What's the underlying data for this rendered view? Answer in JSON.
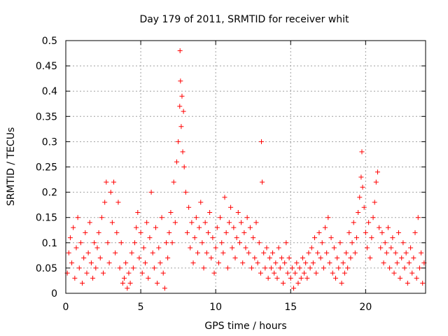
{
  "chart_data": {
    "type": "scatter",
    "title": "Day 179 of 2011, SRMTID for receiver whit",
    "xlabel": "GPS time / hours",
    "ylabel": "SRMTID / TECUs",
    "xlim": [
      0,
      24
    ],
    "ylim": [
      0,
      0.5
    ],
    "xticks": [
      0,
      5,
      10,
      15,
      20
    ],
    "xtick_labels": [
      "0",
      "5",
      "10",
      "15",
      "20"
    ],
    "yticks": [
      0,
      0.05,
      0.1,
      0.15,
      0.2,
      0.25,
      0.3,
      0.35,
      0.4,
      0.45,
      0.5
    ],
    "ytick_labels": [
      "0",
      "0.05",
      "0.1",
      "0.15",
      "0.2",
      "0.25",
      "0.3",
      "0.35",
      "0.4",
      "0.45",
      "0.5"
    ],
    "grid": true,
    "marker": "+",
    "color": "#ff0000",
    "series": [
      {
        "name": "SRMTID",
        "points": [
          [
            0.1,
            0.04
          ],
          [
            0.2,
            0.08
          ],
          [
            0.3,
            0.11
          ],
          [
            0.4,
            0.06
          ],
          [
            0.5,
            0.13
          ],
          [
            0.6,
            0.03
          ],
          [
            0.7,
            0.09
          ],
          [
            0.8,
            0.15
          ],
          [
            0.9,
            0.05
          ],
          [
            1.0,
            0.1
          ],
          [
            1.1,
            0.02
          ],
          [
            1.2,
            0.07
          ],
          [
            1.3,
            0.12
          ],
          [
            1.4,
            0.04
          ],
          [
            1.5,
            0.08
          ],
          [
            1.6,
            0.14
          ],
          [
            1.7,
            0.06
          ],
          [
            1.8,
            0.03
          ],
          [
            1.9,
            0.1
          ],
          [
            2.0,
            0.05
          ],
          [
            2.1,
            0.09
          ],
          [
            2.2,
            0.12
          ],
          [
            2.3,
            0.07
          ],
          [
            2.4,
            0.15
          ],
          [
            2.5,
            0.04
          ],
          [
            2.6,
            0.18
          ],
          [
            2.7,
            0.22
          ],
          [
            2.8,
            0.1
          ],
          [
            2.9,
            0.06
          ],
          [
            3.0,
            0.2
          ],
          [
            3.1,
            0.14
          ],
          [
            3.2,
            0.22
          ],
          [
            3.3,
            0.08
          ],
          [
            3.4,
            0.12
          ],
          [
            3.5,
            0.18
          ],
          [
            3.6,
            0.05
          ],
          [
            3.7,
            0.1
          ],
          [
            3.8,
            0.02
          ],
          [
            3.9,
            0.03
          ],
          [
            4.0,
            0.06
          ],
          [
            4.1,
            0.01
          ],
          [
            4.2,
            0.04
          ],
          [
            4.3,
            0.02
          ],
          [
            4.4,
            0.08
          ],
          [
            4.5,
            0.05
          ],
          [
            4.6,
            0.1
          ],
          [
            4.7,
            0.13
          ],
          [
            4.8,
            0.16
          ],
          [
            4.9,
            0.07
          ],
          [
            5.0,
            0.12
          ],
          [
            5.1,
            0.04
          ],
          [
            5.2,
            0.09
          ],
          [
            5.3,
            0.06
          ],
          [
            5.4,
            0.14
          ],
          [
            5.5,
            0.03
          ],
          [
            5.6,
            0.11
          ],
          [
            5.7,
            0.2
          ],
          [
            5.8,
            0.08
          ],
          [
            5.9,
            0.05
          ],
          [
            6.0,
            0.13
          ],
          [
            6.1,
            0.02
          ],
          [
            6.2,
            0.09
          ],
          [
            6.3,
            0.06
          ],
          [
            6.4,
            0.15
          ],
          [
            6.5,
            0.04
          ],
          [
            6.6,
            0.01
          ],
          [
            6.7,
            0.1
          ],
          [
            6.8,
            0.07
          ],
          [
            6.9,
            0.12
          ],
          [
            7.0,
            0.16
          ],
          [
            7.1,
            0.1
          ],
          [
            7.2,
            0.22
          ],
          [
            7.3,
            0.14
          ],
          [
            7.4,
            0.26
          ],
          [
            7.5,
            0.3
          ],
          [
            7.6,
            0.37
          ],
          [
            7.62,
            0.48
          ],
          [
            7.65,
            0.42
          ],
          [
            7.7,
            0.33
          ],
          [
            7.75,
            0.39
          ],
          [
            7.8,
            0.28
          ],
          [
            7.85,
            0.36
          ],
          [
            7.9,
            0.25
          ],
          [
            8.0,
            0.2
          ],
          [
            8.1,
            0.12
          ],
          [
            8.2,
            0.17
          ],
          [
            8.3,
            0.09
          ],
          [
            8.4,
            0.14
          ],
          [
            8.5,
            0.06
          ],
          [
            8.6,
            0.11
          ],
          [
            8.7,
            0.15
          ],
          [
            8.8,
            0.08
          ],
          [
            8.9,
            0.13
          ],
          [
            9.0,
            0.18
          ],
          [
            9.1,
            0.1
          ],
          [
            9.2,
            0.05
          ],
          [
            9.3,
            0.14
          ],
          [
            9.4,
            0.08
          ],
          [
            9.5,
            0.12
          ],
          [
            9.6,
            0.16
          ],
          [
            9.7,
            0.07
          ],
          [
            9.8,
            0.11
          ],
          [
            9.9,
            0.04
          ],
          [
            10.0,
            0.09
          ],
          [
            10.1,
            0.13
          ],
          [
            10.2,
            0.06
          ],
          [
            10.3,
            0.15
          ],
          [
            10.4,
            0.1
          ],
          [
            10.5,
            0.08
          ],
          [
            10.6,
            0.19
          ],
          [
            10.7,
            0.12
          ],
          [
            10.8,
            0.05
          ],
          [
            10.9,
            0.14
          ],
          [
            11.0,
            0.17
          ],
          [
            11.1,
            0.09
          ],
          [
            11.2,
            0.13
          ],
          [
            11.3,
            0.07
          ],
          [
            11.4,
            0.11
          ],
          [
            11.5,
            0.16
          ],
          [
            11.6,
            0.1
          ],
          [
            11.7,
            0.14
          ],
          [
            11.8,
            0.06
          ],
          [
            11.9,
            0.12
          ],
          [
            12.0,
            0.09
          ],
          [
            12.1,
            0.15
          ],
          [
            12.2,
            0.08
          ],
          [
            12.3,
            0.13
          ],
          [
            12.4,
            0.05
          ],
          [
            12.5,
            0.11
          ],
          [
            12.6,
            0.07
          ],
          [
            12.7,
            0.14
          ],
          [
            12.8,
            0.06
          ],
          [
            12.9,
            0.1
          ],
          [
            13.0,
            0.04
          ],
          [
            13.05,
            0.3
          ],
          [
            13.1,
            0.22
          ],
          [
            13.2,
            0.08
          ],
          [
            13.3,
            0.05
          ],
          [
            13.4,
            0.09
          ],
          [
            13.5,
            0.03
          ],
          [
            13.6,
            0.07
          ],
          [
            13.7,
            0.05
          ],
          [
            13.8,
            0.08
          ],
          [
            13.9,
            0.04
          ],
          [
            14.0,
            0.06
          ],
          [
            14.1,
            0.03
          ],
          [
            14.2,
            0.09
          ],
          [
            14.3,
            0.05
          ],
          [
            14.4,
            0.07
          ],
          [
            14.5,
            0.02
          ],
          [
            14.6,
            0.06
          ],
          [
            14.7,
            0.1
          ],
          [
            14.8,
            0.04
          ],
          [
            14.9,
            0.07
          ],
          [
            15.0,
            0.03
          ],
          [
            15.1,
            0.05
          ],
          [
            15.2,
            0.01
          ],
          [
            15.3,
            0.04
          ],
          [
            15.4,
            0.06
          ],
          [
            15.5,
            0.02
          ],
          [
            15.6,
            0.05
          ],
          [
            15.7,
            0.03
          ],
          [
            15.8,
            0.07
          ],
          [
            15.9,
            0.04
          ],
          [
            16.0,
            0.06
          ],
          [
            16.1,
            0.03
          ],
          [
            16.2,
            0.08
          ],
          [
            16.3,
            0.05
          ],
          [
            16.4,
            0.09
          ],
          [
            16.5,
            0.06
          ],
          [
            16.6,
            0.11
          ],
          [
            16.7,
            0.04
          ],
          [
            16.8,
            0.08
          ],
          [
            16.9,
            0.12
          ],
          [
            17.0,
            0.07
          ],
          [
            17.1,
            0.1
          ],
          [
            17.2,
            0.05
          ],
          [
            17.3,
            0.13
          ],
          [
            17.4,
            0.08
          ],
          [
            17.5,
            0.15
          ],
          [
            17.6,
            0.06
          ],
          [
            17.7,
            0.11
          ],
          [
            17.8,
            0.04
          ],
          [
            17.9,
            0.09
          ],
          [
            18.0,
            0.03
          ],
          [
            18.1,
            0.07
          ],
          [
            18.2,
            0.05
          ],
          [
            18.3,
            0.1
          ],
          [
            18.4,
            0.02
          ],
          [
            18.5,
            0.06
          ],
          [
            18.6,
            0.04
          ],
          [
            18.7,
            0.08
          ],
          [
            18.8,
            0.05
          ],
          [
            18.9,
            0.12
          ],
          [
            19.0,
            0.07
          ],
          [
            19.1,
            0.1
          ],
          [
            19.2,
            0.14
          ],
          [
            19.3,
            0.08
          ],
          [
            19.4,
            0.11
          ],
          [
            19.5,
            0.16
          ],
          [
            19.6,
            0.19
          ],
          [
            19.7,
            0.23
          ],
          [
            19.75,
            0.28
          ],
          [
            19.8,
            0.21
          ],
          [
            19.9,
            0.17
          ],
          [
            20.0,
            0.12
          ],
          [
            20.1,
            0.09
          ],
          [
            20.2,
            0.14
          ],
          [
            20.3,
            0.07
          ],
          [
            20.4,
            0.11
          ],
          [
            20.5,
            0.15
          ],
          [
            20.6,
            0.18
          ],
          [
            20.7,
            0.22
          ],
          [
            20.8,
            0.24
          ],
          [
            20.9,
            0.13
          ],
          [
            21.0,
            0.09
          ],
          [
            21.1,
            0.12
          ],
          [
            21.2,
            0.06
          ],
          [
            21.3,
            0.1
          ],
          [
            21.4,
            0.08
          ],
          [
            21.5,
            0.13
          ],
          [
            21.6,
            0.05
          ],
          [
            21.7,
            0.09
          ],
          [
            21.8,
            0.11
          ],
          [
            21.9,
            0.04
          ],
          [
            22.0,
            0.08
          ],
          [
            22.1,
            0.06
          ],
          [
            22.2,
            0.12
          ],
          [
            22.3,
            0.03
          ],
          [
            22.4,
            0.07
          ],
          [
            22.5,
            0.1
          ],
          [
            22.6,
            0.05
          ],
          [
            22.7,
            0.08
          ],
          [
            22.8,
            0.02
          ],
          [
            22.9,
            0.06
          ],
          [
            23.0,
            0.09
          ],
          [
            23.1,
            0.04
          ],
          [
            23.2,
            0.07
          ],
          [
            23.3,
            0.12
          ],
          [
            23.4,
            0.03
          ],
          [
            23.5,
            0.15
          ],
          [
            23.6,
            0.05
          ],
          [
            23.7,
            0.08
          ],
          [
            23.8,
            0.02
          ],
          [
            23.9,
            0.06
          ]
        ]
      }
    ]
  }
}
